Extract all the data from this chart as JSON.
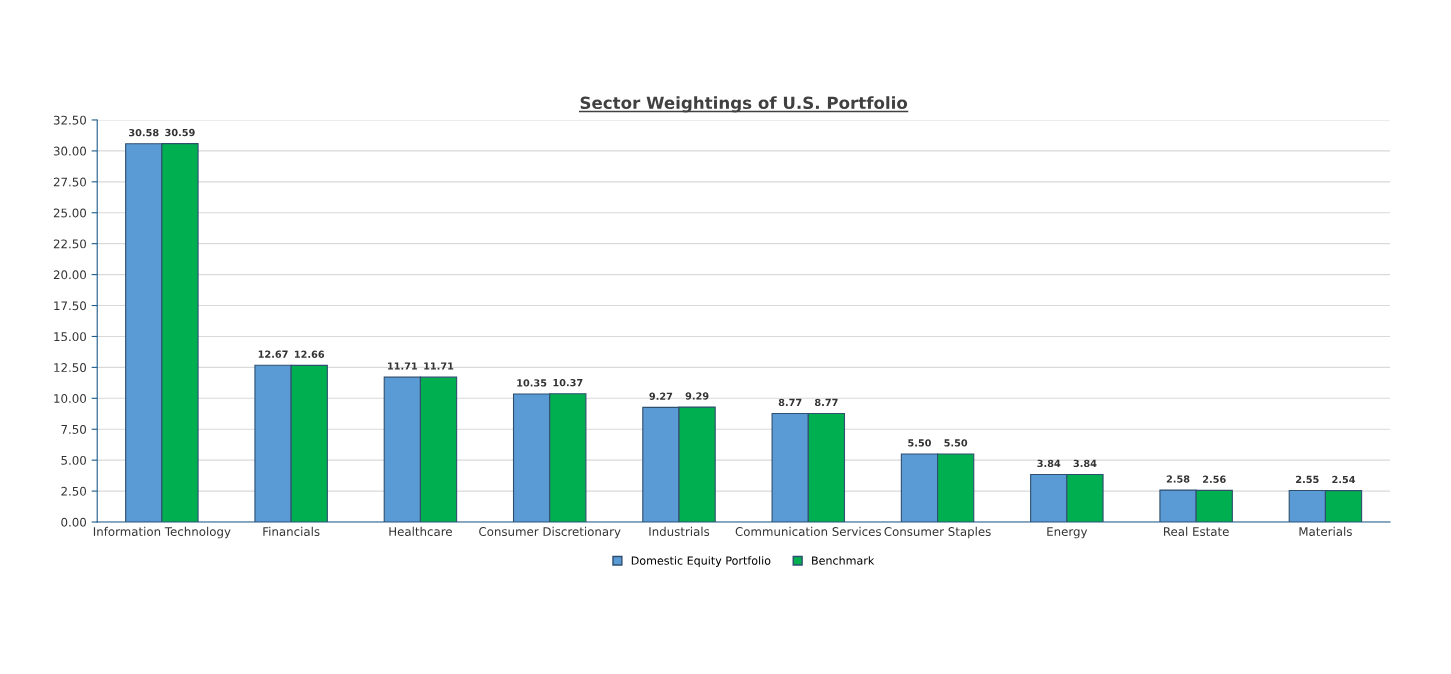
{
  "chart_data": {
    "type": "bar",
    "title": "Sector Weightings of U.S. Portfolio",
    "categories": [
      "Information Technology",
      "Financials",
      "Healthcare",
      "Consumer Discretionary",
      "Industrials",
      "Communication Services",
      "Consumer Staples",
      "Energy",
      "Real Estate",
      "Materials"
    ],
    "series": [
      {
        "name": "Domestic Equity Portfolio",
        "color": "#5b9bd5",
        "values": [
          30.58,
          12.67,
          11.71,
          10.35,
          9.27,
          8.77,
          5.5,
          3.84,
          2.58,
          2.55
        ],
        "value_labels": [
          "30.58",
          "12.67",
          "11.71",
          "10.35",
          "9.27",
          "8.77",
          "5.50",
          "3.84",
          "2.58",
          "2.55"
        ]
      },
      {
        "name": "Benchmark",
        "color": "#00b050",
        "values": [
          30.59,
          12.66,
          11.71,
          10.37,
          9.29,
          8.77,
          5.5,
          3.84,
          2.56,
          2.54
        ],
        "value_labels": [
          "30.59",
          "12.66",
          "11.71",
          "10.37",
          "9.29",
          "8.77",
          "5.50",
          "3.84",
          "2.56",
          "2.54"
        ]
      }
    ],
    "ylim": [
      0,
      32.5
    ],
    "yticks": [
      {
        "value": 0,
        "label": "0.00"
      },
      {
        "value": 2.5,
        "label": "2.50"
      },
      {
        "value": 5,
        "label": "5.00"
      },
      {
        "value": 7.5,
        "label": "7.50"
      },
      {
        "value": 10,
        "label": "10.00"
      },
      {
        "value": 12.5,
        "label": "12.50"
      },
      {
        "value": 15,
        "label": "15.00"
      },
      {
        "value": 17.5,
        "label": "17.50"
      },
      {
        "value": 20,
        "label": "20.00"
      },
      {
        "value": 22.5,
        "label": "22.50"
      },
      {
        "value": 25,
        "label": "25.00"
      },
      {
        "value": 27.5,
        "label": "27.50"
      },
      {
        "value": 30,
        "label": "30.00"
      },
      {
        "value": 32.5,
        "label": "32.50"
      }
    ],
    "grid": "y",
    "legend": "bottom"
  }
}
